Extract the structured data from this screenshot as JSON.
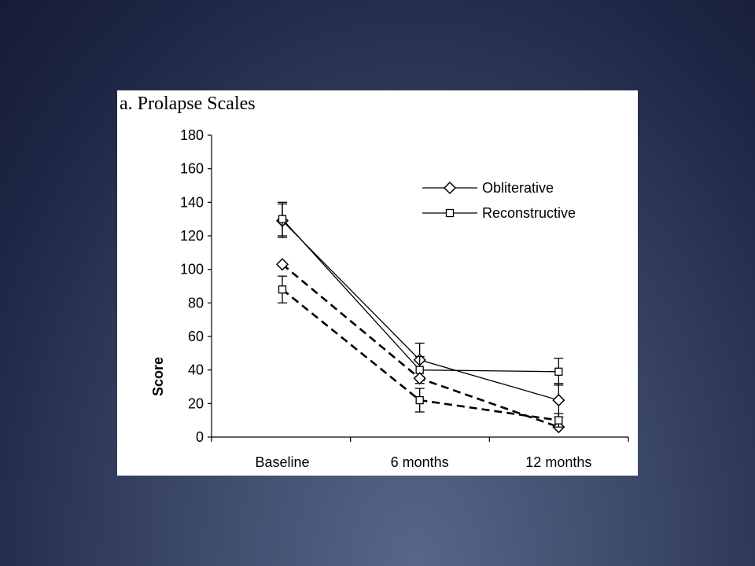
{
  "chart_data": {
    "type": "line",
    "title": "a. Prolapse Scales",
    "xlabel": "",
    "ylabel": "Score",
    "categories": [
      "Baseline",
      "6 months",
      "12 months"
    ],
    "ylim": [
      0,
      180
    ],
    "yticks": [
      0,
      20,
      40,
      60,
      80,
      100,
      120,
      140,
      160,
      180
    ],
    "grid": false,
    "legend": "top-right",
    "series": [
      {
        "name": "Obliterative",
        "marker": "diamond",
        "style": "solid",
        "values": [
          129,
          46,
          22
        ],
        "error": [
          10,
          10,
          10
        ]
      },
      {
        "name": "Reconstructive",
        "marker": "square",
        "style": "solid",
        "values": [
          130,
          40,
          39
        ],
        "error": [
          10,
          8,
          8
        ]
      },
      {
        "marker": "diamond",
        "style": "dashed",
        "values": [
          103,
          35,
          6
        ],
        "error": [
          0,
          0,
          0
        ]
      },
      {
        "marker": "square",
        "style": "dashed",
        "values": [
          88,
          22,
          10
        ],
        "error": [
          8,
          7,
          4
        ]
      }
    ]
  }
}
